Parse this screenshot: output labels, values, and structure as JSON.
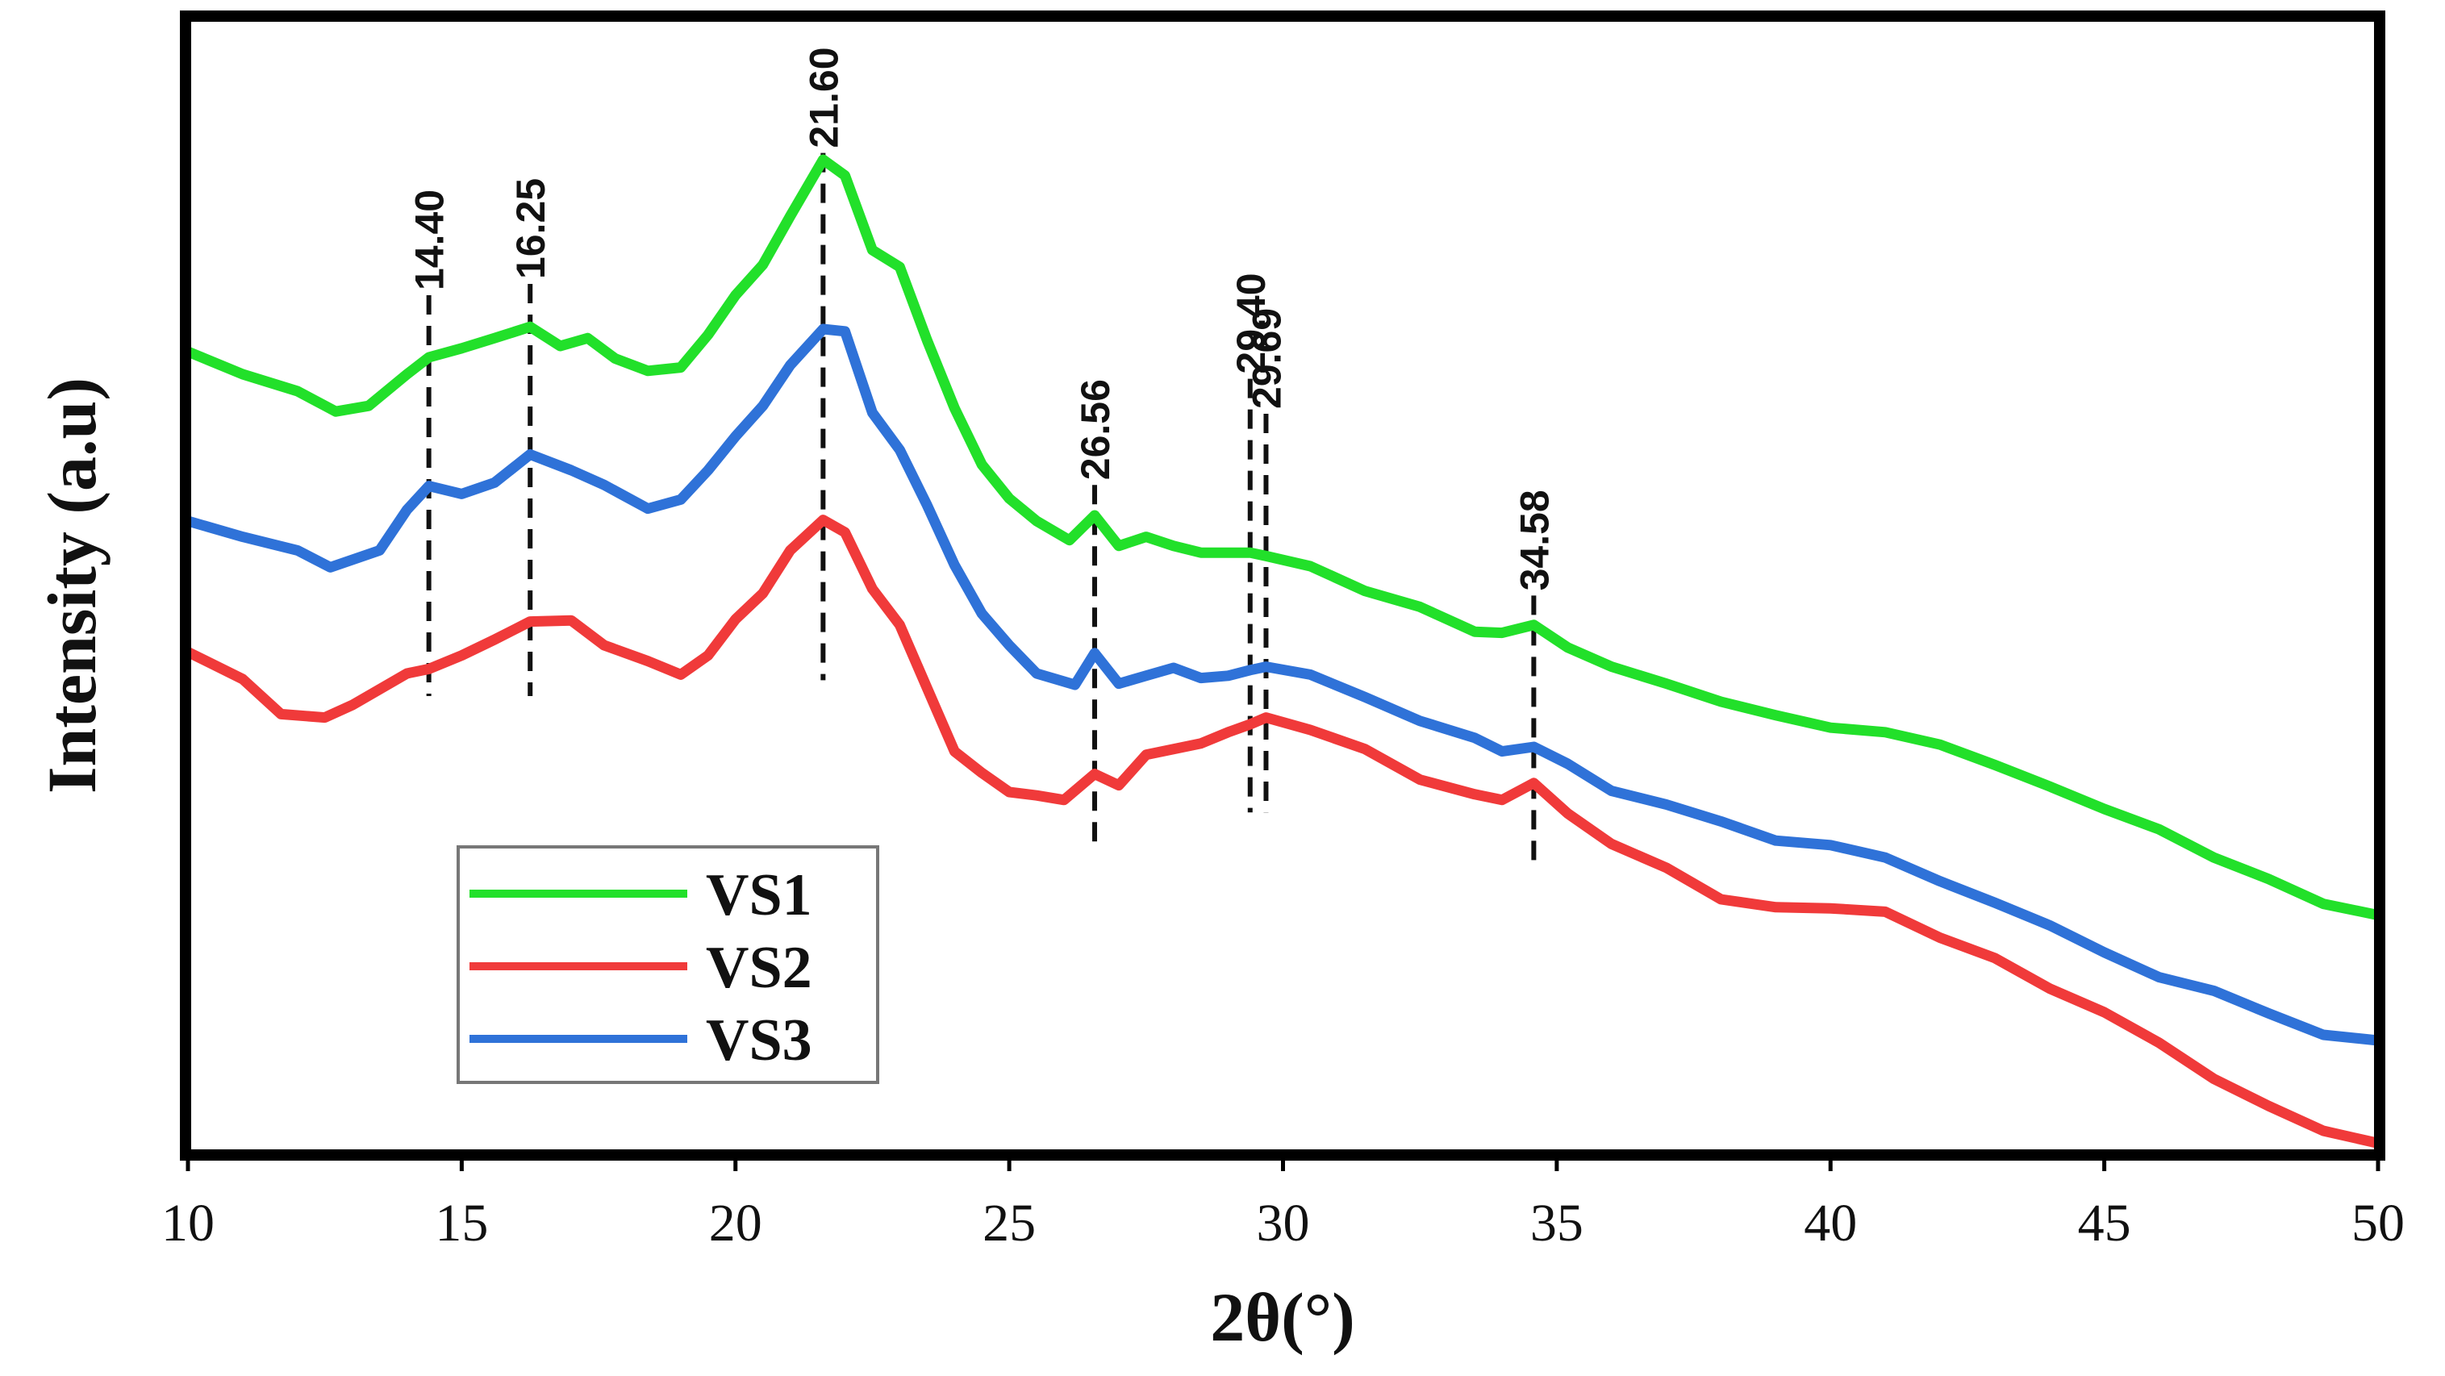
{
  "chart_data": {
    "type": "line",
    "title": "",
    "xlabel": "2θ(°)",
    "ylabel": "Intensity (a.u)",
    "xlim": [
      10,
      50
    ],
    "ylim": [
      0,
      100
    ],
    "xticks": [
      10,
      15,
      20,
      25,
      30,
      35,
      40,
      45,
      50
    ],
    "x_tick_labels": [
      "10",
      "15",
      "20",
      "25",
      "30",
      "35",
      "40",
      "45",
      "50"
    ],
    "grid": false,
    "legend_position": "bottom-left",
    "series": [
      {
        "name": "VS1",
        "color": "#22e02a",
        "points": [
          [
            10,
            71
          ],
          [
            11,
            69
          ],
          [
            12,
            67.5
          ],
          [
            12.7,
            65.7
          ],
          [
            13.3,
            66.2
          ],
          [
            14,
            69
          ],
          [
            14.4,
            70.5
          ],
          [
            15,
            71.3
          ],
          [
            15.6,
            72.2
          ],
          [
            16.25,
            73.2
          ],
          [
            16.8,
            71.5
          ],
          [
            17.3,
            72.2
          ],
          [
            17.8,
            70.4
          ],
          [
            18.4,
            69.3
          ],
          [
            19,
            69.6
          ],
          [
            19.5,
            72.5
          ],
          [
            20,
            76
          ],
          [
            20.5,
            78.7
          ],
          [
            21,
            83
          ],
          [
            21.6,
            88
          ],
          [
            22,
            86.6
          ],
          [
            22.5,
            80
          ],
          [
            23,
            78.5
          ],
          [
            23.5,
            72
          ],
          [
            24,
            66
          ],
          [
            24.5,
            61
          ],
          [
            25,
            58
          ],
          [
            25.5,
            56
          ],
          [
            26.1,
            54.3
          ],
          [
            26.56,
            56.5
          ],
          [
            27,
            53.8
          ],
          [
            27.5,
            54.6
          ],
          [
            28,
            53.8
          ],
          [
            28.5,
            53.2
          ],
          [
            29,
            53.2
          ],
          [
            29.4,
            53.2
          ],
          [
            29.69,
            52.9
          ],
          [
            30.5,
            52
          ],
          [
            31.5,
            49.8
          ],
          [
            32.5,
            48.4
          ],
          [
            33.5,
            46.2
          ],
          [
            34,
            46.1
          ],
          [
            34.58,
            46.8
          ],
          [
            35.2,
            44.8
          ],
          [
            36,
            43.1
          ],
          [
            37,
            41.6
          ],
          [
            38,
            40
          ],
          [
            39,
            38.8
          ],
          [
            40,
            37.7
          ],
          [
            41,
            37.3
          ],
          [
            42,
            36.2
          ],
          [
            43,
            34.4
          ],
          [
            44,
            32.5
          ],
          [
            45,
            30.5
          ],
          [
            46,
            28.7
          ],
          [
            47,
            26.2
          ],
          [
            48,
            24.3
          ],
          [
            49,
            22.1
          ],
          [
            50,
            21.1
          ]
        ]
      },
      {
        "name": "VS2",
        "color": "#f03a3a",
        "points": [
          [
            10,
            44.4
          ],
          [
            11,
            42
          ],
          [
            11.7,
            38.9
          ],
          [
            12.5,
            38.6
          ],
          [
            13,
            39.7
          ],
          [
            14,
            42.5
          ],
          [
            14.4,
            42.9
          ],
          [
            15,
            44.1
          ],
          [
            15.6,
            45.5
          ],
          [
            16.25,
            47.1
          ],
          [
            17,
            47.2
          ],
          [
            17.6,
            45
          ],
          [
            18.4,
            43.6
          ],
          [
            19,
            42.4
          ],
          [
            19.5,
            44.1
          ],
          [
            20,
            47.3
          ],
          [
            20.5,
            49.6
          ],
          [
            21,
            53.4
          ],
          [
            21.6,
            56.1
          ],
          [
            22,
            55
          ],
          [
            22.5,
            50
          ],
          [
            23,
            46.8
          ],
          [
            23.5,
            41.2
          ],
          [
            24,
            35.6
          ],
          [
            24.5,
            33.7
          ],
          [
            25,
            32
          ],
          [
            25.5,
            31.7
          ],
          [
            26,
            31.3
          ],
          [
            26.56,
            33.6
          ],
          [
            27,
            32.6
          ],
          [
            27.5,
            35.3
          ],
          [
            28,
            35.8
          ],
          [
            28.5,
            36.3
          ],
          [
            29,
            37.3
          ],
          [
            29.4,
            38
          ],
          [
            29.69,
            38.6
          ],
          [
            30.5,
            37.5
          ],
          [
            31.5,
            35.8
          ],
          [
            32.5,
            33.1
          ],
          [
            33.5,
            31.8
          ],
          [
            34,
            31.3
          ],
          [
            34.58,
            32.8
          ],
          [
            35.2,
            30.1
          ],
          [
            36,
            27.4
          ],
          [
            37,
            25.3
          ],
          [
            38,
            22.5
          ],
          [
            39,
            21.8
          ],
          [
            40,
            21.7
          ],
          [
            41,
            21.4
          ],
          [
            42,
            19.1
          ],
          [
            43,
            17.3
          ],
          [
            44,
            14.6
          ],
          [
            45,
            12.5
          ],
          [
            46,
            9.8
          ],
          [
            47,
            6.6
          ],
          [
            48,
            4.2
          ],
          [
            49,
            2
          ],
          [
            50,
            0.9
          ]
        ]
      },
      {
        "name": "VS3",
        "color": "#2f72d8",
        "points": [
          [
            10,
            56
          ],
          [
            11,
            54.6
          ],
          [
            12,
            53.4
          ],
          [
            12.6,
            51.9
          ],
          [
            13.5,
            53.4
          ],
          [
            14,
            57
          ],
          [
            14.4,
            59.1
          ],
          [
            15,
            58.4
          ],
          [
            15.6,
            59.4
          ],
          [
            16.25,
            61.9
          ],
          [
            17,
            60.5
          ],
          [
            17.6,
            59.2
          ],
          [
            18.4,
            57.1
          ],
          [
            19,
            57.9
          ],
          [
            19.5,
            60.5
          ],
          [
            20,
            63.5
          ],
          [
            20.5,
            66.2
          ],
          [
            21,
            69.8
          ],
          [
            21.6,
            73
          ],
          [
            22,
            72.8
          ],
          [
            22.5,
            65.6
          ],
          [
            23,
            62.3
          ],
          [
            23.5,
            57.4
          ],
          [
            24,
            52.1
          ],
          [
            24.5,
            47.8
          ],
          [
            25,
            45
          ],
          [
            25.5,
            42.5
          ],
          [
            26.2,
            41.5
          ],
          [
            26.56,
            44.3
          ],
          [
            27,
            41.6
          ],
          [
            27.5,
            42.3
          ],
          [
            28,
            43
          ],
          [
            28.5,
            42.1
          ],
          [
            29,
            42.3
          ],
          [
            29.4,
            42.8
          ],
          [
            29.69,
            43.1
          ],
          [
            30.5,
            42.4
          ],
          [
            31.5,
            40.4
          ],
          [
            32.5,
            38.3
          ],
          [
            33.5,
            36.8
          ],
          [
            34,
            35.6
          ],
          [
            34.58,
            36
          ],
          [
            35.2,
            34.5
          ],
          [
            36,
            32.1
          ],
          [
            37,
            30.9
          ],
          [
            38,
            29.4
          ],
          [
            39,
            27.7
          ],
          [
            40,
            27.3
          ],
          [
            41,
            26.2
          ],
          [
            42,
            24.1
          ],
          [
            43,
            22.2
          ],
          [
            44,
            20.2
          ],
          [
            45,
            17.8
          ],
          [
            46,
            15.6
          ],
          [
            47,
            14.4
          ],
          [
            48,
            12.4
          ],
          [
            49,
            10.5
          ],
          [
            50,
            10
          ]
        ]
      }
    ],
    "peak_markers": [
      {
        "x": 14.4,
        "label": "14.40",
        "y_top": 76,
        "y_bottom": 40.5
      },
      {
        "x": 16.25,
        "label": "16.25",
        "y_top": 77,
        "y_bottom": 40.5
      },
      {
        "x": 21.6,
        "label": "21.60",
        "y_top": 88.6,
        "y_bottom": 41.9
      },
      {
        "x": 26.56,
        "label": "26.56",
        "y_top": 59.2,
        "y_bottom": 27.2
      },
      {
        "x": 29.4,
        "label": "29.40",
        "y_top": 68.6,
        "y_bottom": 30.2
      },
      {
        "x": 29.69,
        "label": "29.69",
        "y_top": 65.5,
        "y_bottom": 30.2
      },
      {
        "x": 34.58,
        "label": "34.58",
        "y_top": 49.4,
        "y_bottom": 25.5
      }
    ]
  }
}
